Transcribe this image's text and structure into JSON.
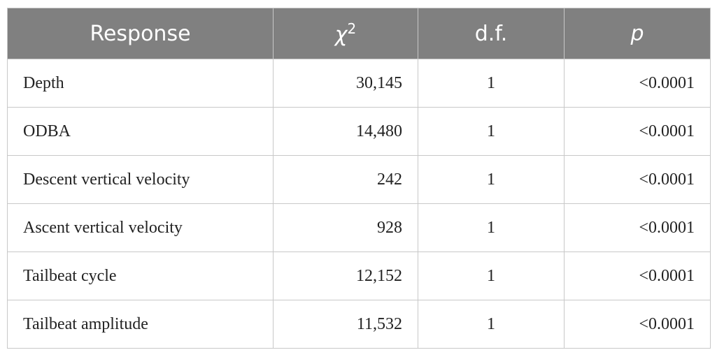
{
  "table": {
    "header": [
      "Response",
      "χ",
      "d.f.",
      "p"
    ],
    "header_sup": "2",
    "rows": [
      [
        "Depth",
        "30,145",
        "1",
        "<0.0001"
      ],
      [
        "ODBA",
        "14,480",
        "1",
        "<0.0001"
      ],
      [
        "Descent vertical velocity",
        "242",
        "1",
        "<0.0001"
      ],
      [
        "Ascent vertical velocity",
        "928",
        "1",
        "<0.0001"
      ],
      [
        "Tailbeat cycle",
        "12,152",
        "1",
        "<0.0001"
      ],
      [
        "Tailbeat amplitude",
        "11,532",
        "1",
        "<0.0001"
      ]
    ]
  }
}
